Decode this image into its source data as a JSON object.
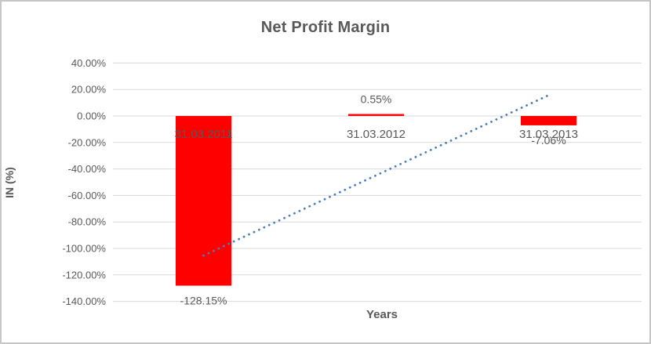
{
  "chart_data": {
    "type": "bar",
    "title": "Net Profit Margin",
    "xlabel": "Years",
    "ylabel": "IN (%)",
    "categories": [
      "31.03.2011",
      "31.03.2012",
      "31.03.2013"
    ],
    "values": [
      -128.15,
      0.55,
      -7.06
    ],
    "data_labels": [
      "-128.15%",
      "0.55%",
      "-7.06%"
    ],
    "yticks": [
      "40.00%",
      "20.00%",
      "0.00%",
      "-20.00%",
      "-40.00%",
      "-60.00%",
      "-80.00%",
      "-100.00%",
      "-120.00%",
      "-140.00%"
    ],
    "ytick_values": [
      40,
      20,
      0,
      -20,
      -40,
      -60,
      -80,
      -100,
      -120,
      -140
    ],
    "ylim": [
      -140,
      40
    ],
    "grid": "horizontal",
    "legend": "none",
    "bar_color": "#fe0000",
    "text_color": "#595959",
    "gridline_color": "#d9d9d9",
    "trendline": {
      "type": "linear",
      "style": "dotted",
      "color": "#4a7ebb",
      "start_value": -105.4,
      "end_value": 15.7
    }
  }
}
